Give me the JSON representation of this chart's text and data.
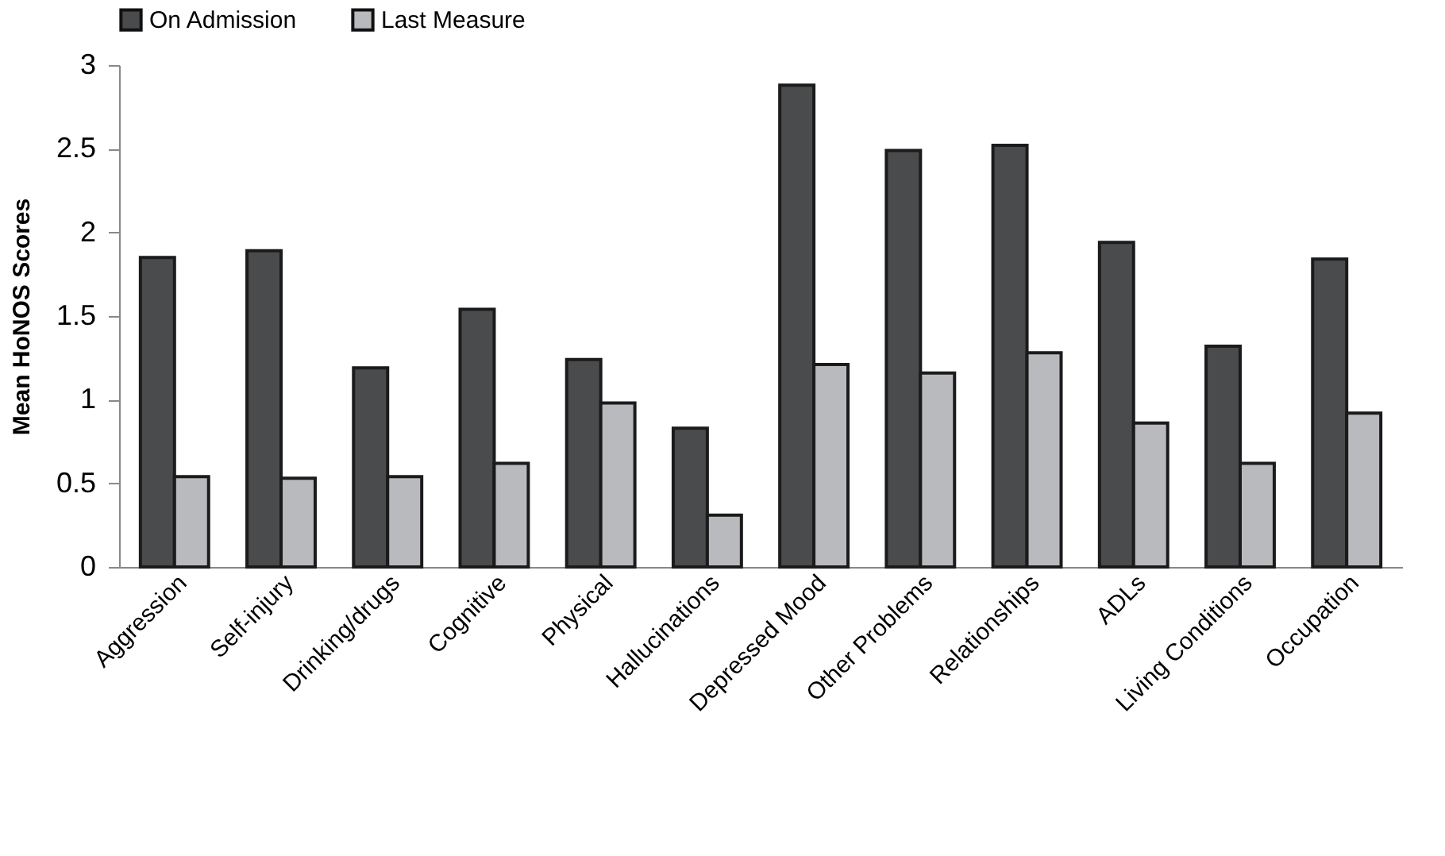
{
  "chart_data": {
    "type": "bar",
    "ylabel": "Mean HoNOS Scores",
    "categories": [
      "Aggression",
      "Self-injury",
      "Drinking/drugs",
      "Cognitive",
      "Physical",
      "Hallucinations",
      "Depressed Mood",
      "Other Problems",
      "Relationships",
      "ADLs",
      "Living Conditions",
      "Occupation"
    ],
    "series": [
      {
        "name": "On Admission",
        "color": "#4a4b4d",
        "values": [
          1.85,
          1.89,
          1.19,
          1.54,
          1.24,
          0.83,
          2.88,
          2.49,
          2.52,
          1.94,
          1.32,
          1.84
        ]
      },
      {
        "name": "Last Measure",
        "color": "#b9babd",
        "values": [
          0.54,
          0.53,
          0.54,
          0.62,
          0.98,
          0.31,
          1.21,
          1.16,
          1.28,
          0.86,
          0.62,
          0.92
        ]
      }
    ],
    "ylim": [
      0,
      3
    ],
    "yticks": [
      0,
      0.5,
      1,
      1.5,
      2,
      2.5,
      3
    ],
    "grid": false,
    "legend": "top"
  }
}
